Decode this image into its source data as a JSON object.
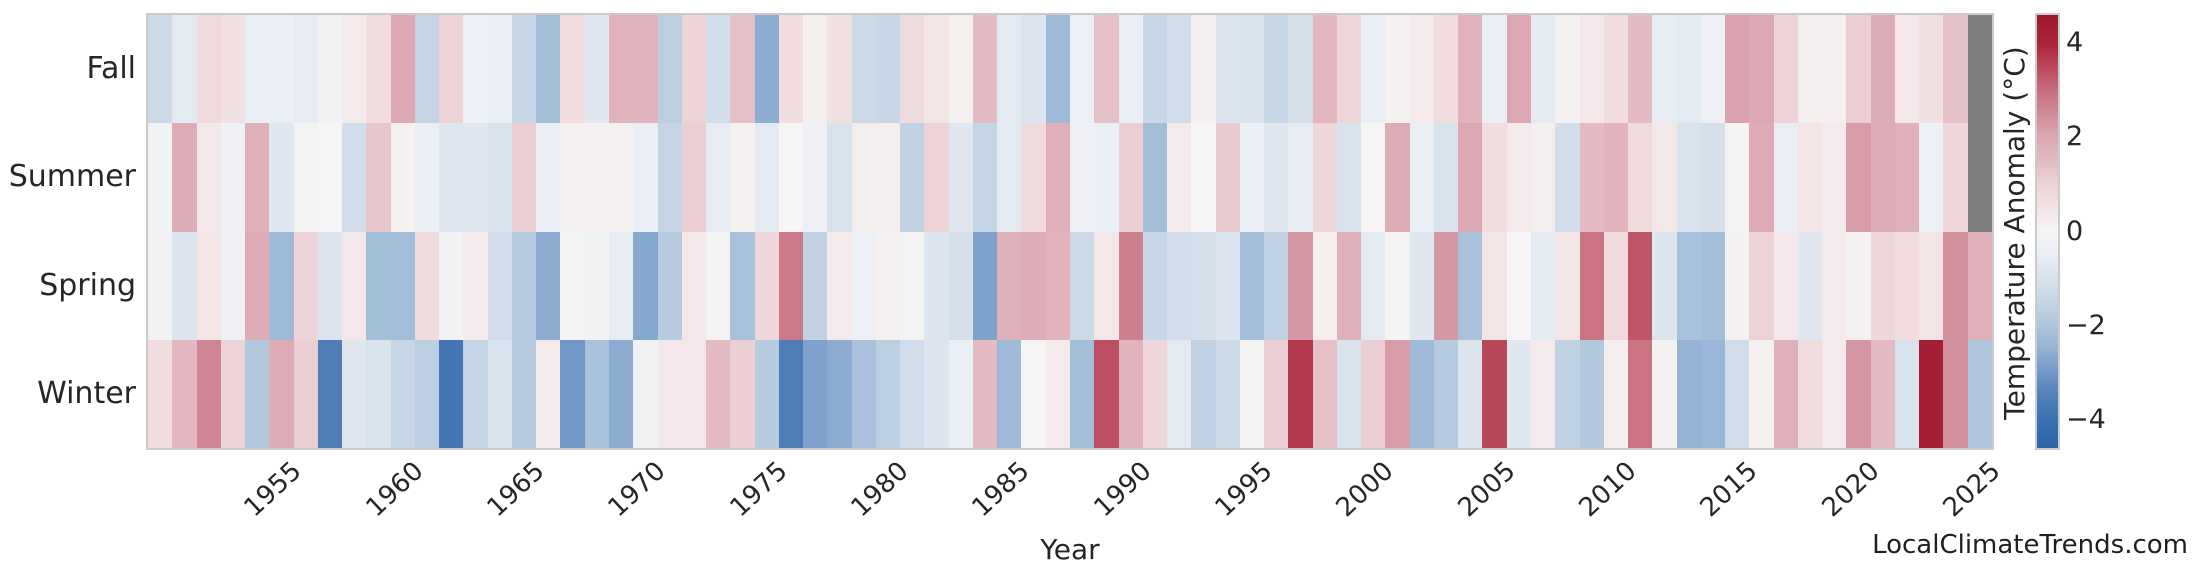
{
  "watermark": "LocalClimateTrends.com",
  "axes": {
    "xlabel": "Year",
    "x_tick_years": [
      1955,
      1960,
      1965,
      1970,
      1975,
      1980,
      1985,
      1990,
      1995,
      2000,
      2005,
      2010,
      2015,
      2020,
      2025
    ],
    "row_labels": [
      "Fall",
      "Summer",
      "Spring",
      "Winter"
    ]
  },
  "colorbar": {
    "label": "Temperature Anomaly (°C)",
    "ticks": [
      {
        "value": 4,
        "label": "4"
      },
      {
        "value": 2,
        "label": "2"
      },
      {
        "value": 0,
        "label": "0"
      },
      {
        "value": -2,
        "label": "−2"
      },
      {
        "value": -4,
        "label": "−4"
      }
    ]
  },
  "style": {
    "frame_color": "#cbcbcb",
    "text_color": "#262626",
    "missing_color": "#7f7f7f",
    "palette_anchors": [
      [
        4.6,
        "#9b1a2d"
      ],
      [
        4.0,
        "#ac2439"
      ],
      [
        3.5,
        "#b9475a"
      ],
      [
        3.0,
        "#c76d7e"
      ],
      [
        2.5,
        "#d18b98"
      ],
      [
        2.0,
        "#dca8b3"
      ],
      [
        1.5,
        "#e4bbc3"
      ],
      [
        1.0,
        "#edd3d8"
      ],
      [
        0.5,
        "#f3e4e6"
      ],
      [
        0.0,
        "#f6f4f4"
      ],
      [
        -0.5,
        "#eaeef5"
      ],
      [
        -1.0,
        "#d9e3ed"
      ],
      [
        -1.5,
        "#c4d4e5"
      ],
      [
        -2.0,
        "#aec5dd"
      ],
      [
        -2.5,
        "#93b3d4"
      ],
      [
        -3.0,
        "#7097c5"
      ],
      [
        -3.5,
        "#5380ba"
      ],
      [
        -4.0,
        "#3a70b1"
      ],
      [
        -4.6,
        "#2b65a9"
      ]
    ]
  },
  "chart_data": {
    "type": "heatmap",
    "title": "",
    "xlabel": "Year",
    "ylabel": "",
    "legend_label": "Temperature Anomaly (°C)",
    "value_range": [
      -4.6,
      4.6
    ],
    "x_start_year": 1950,
    "x_end_year": 2025,
    "grid": false,
    "rows": [
      "Fall",
      "Summer",
      "Spring",
      "Winter"
    ],
    "series": [
      {
        "name": "Fall",
        "values": [
          -1.3,
          -0.7,
          0.8,
          0.6,
          -0.5,
          -0.5,
          -0.6,
          -0.2,
          0.3,
          0.7,
          2.0,
          -1.5,
          1.0,
          -0.4,
          -0.5,
          -1.4,
          -2.2,
          0.7,
          -0.8,
          1.7,
          1.7,
          -1.7,
          1.0,
          -1.2,
          1.4,
          -2.6,
          0.7,
          0.2,
          0.6,
          -1.3,
          -1.4,
          0.8,
          0.5,
          0.1,
          1.5,
          -0.7,
          -0.9,
          -2.3,
          -0.4,
          1.4,
          -0.5,
          -1.4,
          -1.2,
          0.2,
          -0.9,
          -1.0,
          -1.4,
          -1.1,
          1.6,
          0.9,
          -0.5,
          0.1,
          0.3,
          0.7,
          1.7,
          -0.5,
          2.0,
          -0.7,
          0.1,
          0.4,
          0.7,
          1.5,
          -0.6,
          -0.7,
          -0.3,
          2.1,
          2.0,
          1.0,
          0.2,
          0.2,
          1.1,
          1.9,
          0.4,
          0.6,
          1.4,
          null
        ]
      },
      {
        "name": "Summer",
        "values": [
          -0.2,
          1.9,
          0.4,
          -0.3,
          1.8,
          -0.8,
          -0.1,
          0.0,
          -1.2,
          1.3,
          0.1,
          -0.5,
          -0.8,
          -0.8,
          -1.0,
          1.1,
          -0.5,
          0.1,
          0.1,
          0.1,
          -0.5,
          -1.5,
          1.1,
          -0.6,
          0.1,
          -0.7,
          0.0,
          -0.3,
          -1.0,
          0.2,
          0.2,
          -1.6,
          1.0,
          -0.8,
          -1.5,
          -0.7,
          0.8,
          1.8,
          -0.3,
          -0.5,
          1.1,
          -2.2,
          0.3,
          0.0,
          1.2,
          -0.5,
          -0.8,
          -0.6,
          0.9,
          -1.0,
          0.0,
          1.9,
          -0.5,
          -1.0,
          2.0,
          0.7,
          0.3,
          0.2,
          -1.2,
          1.5,
          1.7,
          0.8,
          0.4,
          -1.0,
          -1.1,
          -0.1,
          1.9,
          -0.5,
          0.5,
          0.3,
          2.2,
          1.9,
          1.8,
          -0.4,
          0.9,
          null
        ]
      },
      {
        "name": "Spring",
        "values": [
          -0.2,
          -0.9,
          0.5,
          -0.3,
          1.9,
          -2.3,
          1.0,
          -0.9,
          0.4,
          -2.2,
          -2.2,
          0.8,
          -0.2,
          0.3,
          -1.2,
          -1.8,
          -2.6,
          -0.1,
          -0.2,
          -0.6,
          -2.7,
          -1.8,
          0.4,
          -0.1,
          -2.1,
          0.9,
          2.8,
          -1.6,
          0.3,
          -0.4,
          0.1,
          -0.1,
          -0.9,
          -1.1,
          -2.8,
          1.8,
          1.9,
          1.7,
          -1.3,
          0.4,
          2.7,
          -1.4,
          -1.2,
          -1.1,
          -0.9,
          -2.2,
          -1.6,
          2.3,
          0.2,
          1.8,
          -0.7,
          -0.1,
          -0.8,
          2.3,
          -2.1,
          0.5,
          0.0,
          -0.7,
          0.5,
          2.9,
          0.8,
          3.3,
          -0.9,
          -2.1,
          -2.2,
          0.1,
          1.0,
          0.4,
          -0.8,
          0.3,
          0.1,
          0.9,
          0.7,
          0.5,
          2.4,
          1.8
        ]
      },
      {
        "name": "Winter",
        "values": [
          0.7,
          1.6,
          2.6,
          1.0,
          -1.9,
          1.9,
          1.1,
          -3.6,
          -0.8,
          -1.0,
          -1.4,
          -1.7,
          -3.8,
          -1.5,
          -1.0,
          -1.8,
          0.3,
          -3.0,
          -2.1,
          -2.6,
          -0.2,
          0.4,
          0.4,
          1.5,
          1.1,
          -1.8,
          -3.6,
          -2.8,
          -2.6,
          -2.1,
          -1.7,
          -1.2,
          -0.9,
          -0.5,
          1.5,
          -2.3,
          0.0,
          0.3,
          -2.2,
          3.4,
          1.7,
          0.9,
          -0.7,
          -1.6,
          -1.3,
          -0.1,
          1.1,
          3.7,
          1.4,
          -1.0,
          1.1,
          2.2,
          -2.3,
          -1.8,
          -0.9,
          3.5,
          -0.8,
          0.3,
          -1.6,
          -1.9,
          0.2,
          2.9,
          0.1,
          -2.5,
          -2.4,
          -1.2,
          0.1,
          1.8,
          0.7,
          0.3,
          2.3,
          1.5,
          -1.0,
          4.3,
          2.4,
          -2.0
        ]
      }
    ],
    "missing_cells": [
      [
        "Fall",
        2025
      ],
      [
        "Summer",
        2025
      ]
    ],
    "legend_position": "right-colorbar"
  }
}
